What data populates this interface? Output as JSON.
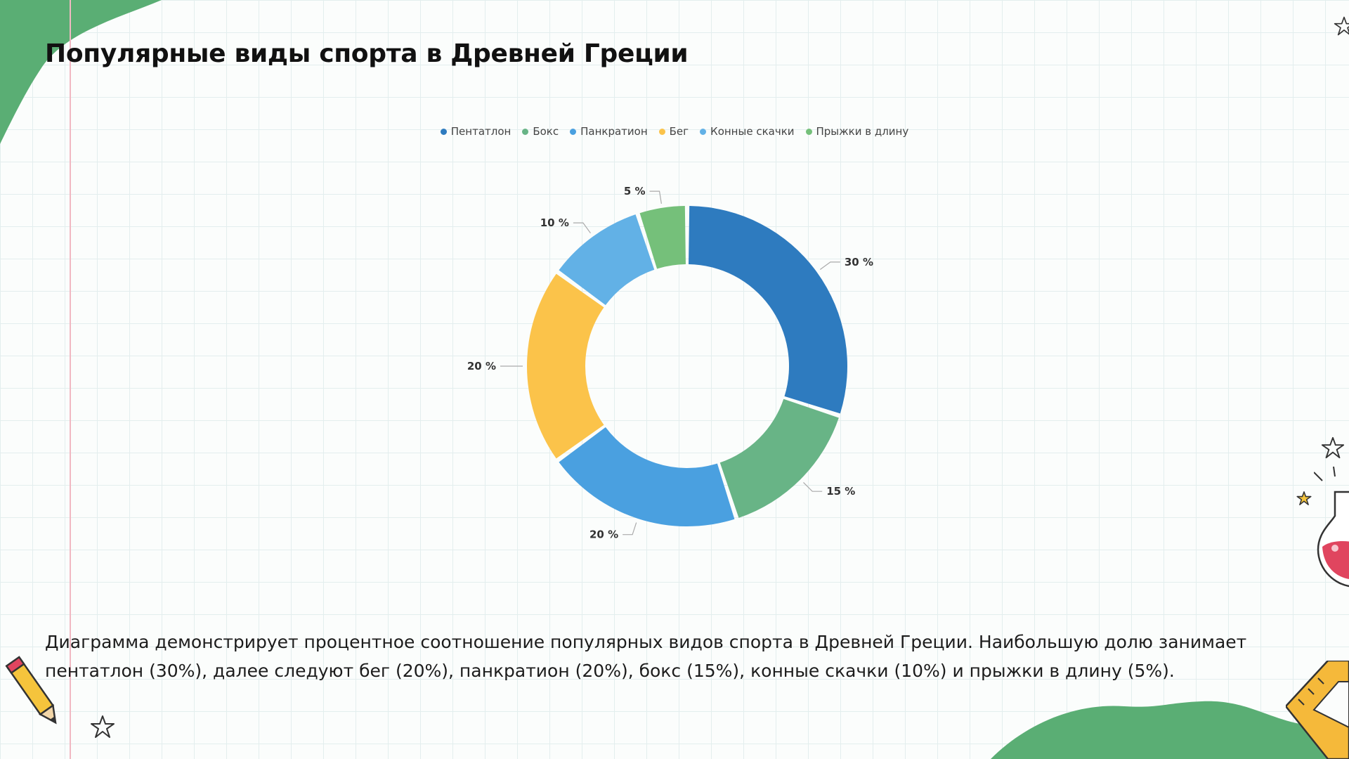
{
  "slide": {
    "title": "Популярные виды спорта в Древней Греции",
    "caption": "Диаграмма демонстрирует процентное соотношение популярных видов спорта в Древней Греции. Наибольшую долю занимает пентатлон (30%), далее следуют бег (20%), панкратион (20%), бокс (15%), конные скачки (10%) и прыжки в длину (5%)."
  },
  "chart_data": {
    "type": "pie",
    "variant": "donut",
    "legend_position": "top",
    "series": [
      {
        "name": "Пентатлон",
        "value": 30,
        "label": "30 %",
        "color": "#2e7bbf"
      },
      {
        "name": "Бокс",
        "value": 15,
        "label": "15 %",
        "color": "#68b486"
      },
      {
        "name": "Панкратион",
        "value": 20,
        "label": "20 %",
        "color": "#4aa0e0"
      },
      {
        "name": "Бег",
        "value": 20,
        "label": "20 %",
        "color": "#fbc34a"
      },
      {
        "name": "Конные скачки",
        "value": 10,
        "label": "10 %",
        "color": "#62b1e6"
      },
      {
        "name": "Прыжки в длину",
        "value": 5,
        "label": "5 %",
        "color": "#75c07a"
      }
    ]
  },
  "decor": {
    "green": "#5aae74",
    "pencil": "#f5c43c",
    "ruler": "#f5b93a",
    "flask_liquid": "#e0455f",
    "icons": [
      "star-icon",
      "pencil-icon",
      "flask-icon",
      "ruler-icon"
    ]
  }
}
